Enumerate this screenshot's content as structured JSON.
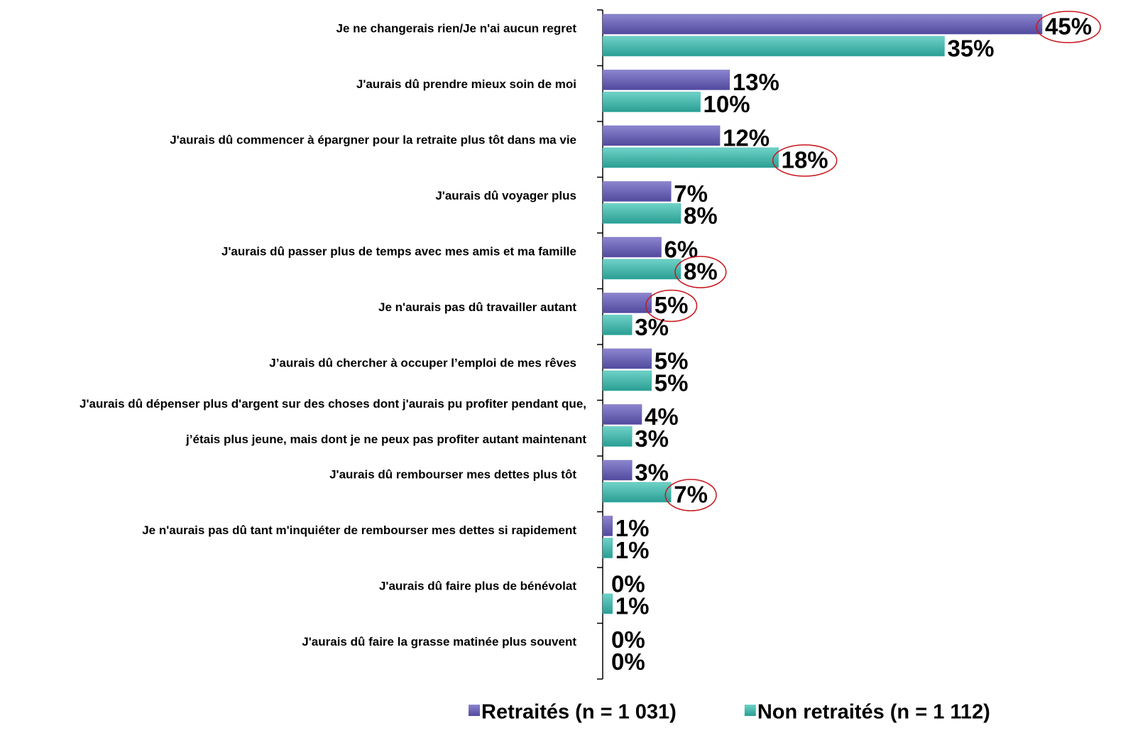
{
  "chart_data": {
    "type": "bar",
    "orientation": "horizontal",
    "categories": [
      "Je ne changerais rien/Je n'ai aucun regret",
      "J'aurais dû prendre mieux soin de moi",
      "J'aurais dû commencer à épargner pour la retraite plus tôt dans ma vie",
      "J'aurais dû voyager plus",
      "J'aurais dû passer plus de temps avec mes amis et ma famille",
      "Je n'aurais pas dû travailler autant",
      "J’aurais dû chercher à occuper l’emploi de mes rêves",
      [
        "J'aurais dû dépenser plus d'argent sur des choses dont j'aurais pu profiter pendant que,",
        "j’étais plus jeune, mais dont je ne peux  pas profiter autant maintenant"
      ],
      "J'aurais dû rembourser mes dettes plus tôt",
      "Je n'aurais pas dû tant m'inquiéter de rembourser mes dettes si rapidement",
      "J'aurais dû faire plus de bénévolat",
      "J'aurais dû faire la grasse matinée plus souvent"
    ],
    "series": [
      {
        "name": "Retraités (n = 1 031)",
        "color": "#6a62b4",
        "values": [
          45,
          13,
          12,
          7,
          6,
          5,
          5,
          4,
          3,
          1,
          0,
          0
        ],
        "value_labels": [
          "45%",
          "13%",
          "12%",
          "7%",
          "6%",
          "5%",
          "5%",
          "4%",
          "3%",
          "1%",
          "0%",
          "0%"
        ],
        "circled": [
          true,
          false,
          false,
          false,
          false,
          true,
          false,
          false,
          false,
          false,
          false,
          false
        ]
      },
      {
        "name": "Non retraités (n = 1 112)",
        "color": "#3db5aa",
        "values": [
          35,
          10,
          18,
          8,
          8,
          3,
          5,
          3,
          7,
          1,
          1,
          0
        ],
        "value_labels": [
          "35%",
          "10%",
          "18%",
          "8%",
          "8%",
          "3%",
          "5%",
          "3%",
          "7%",
          "1%",
          "1%",
          "0%"
        ],
        "circled": [
          false,
          false,
          true,
          false,
          true,
          false,
          false,
          false,
          true,
          false,
          false,
          false
        ]
      }
    ],
    "xlim": [
      0,
      45
    ],
    "legend": "bottom"
  }
}
